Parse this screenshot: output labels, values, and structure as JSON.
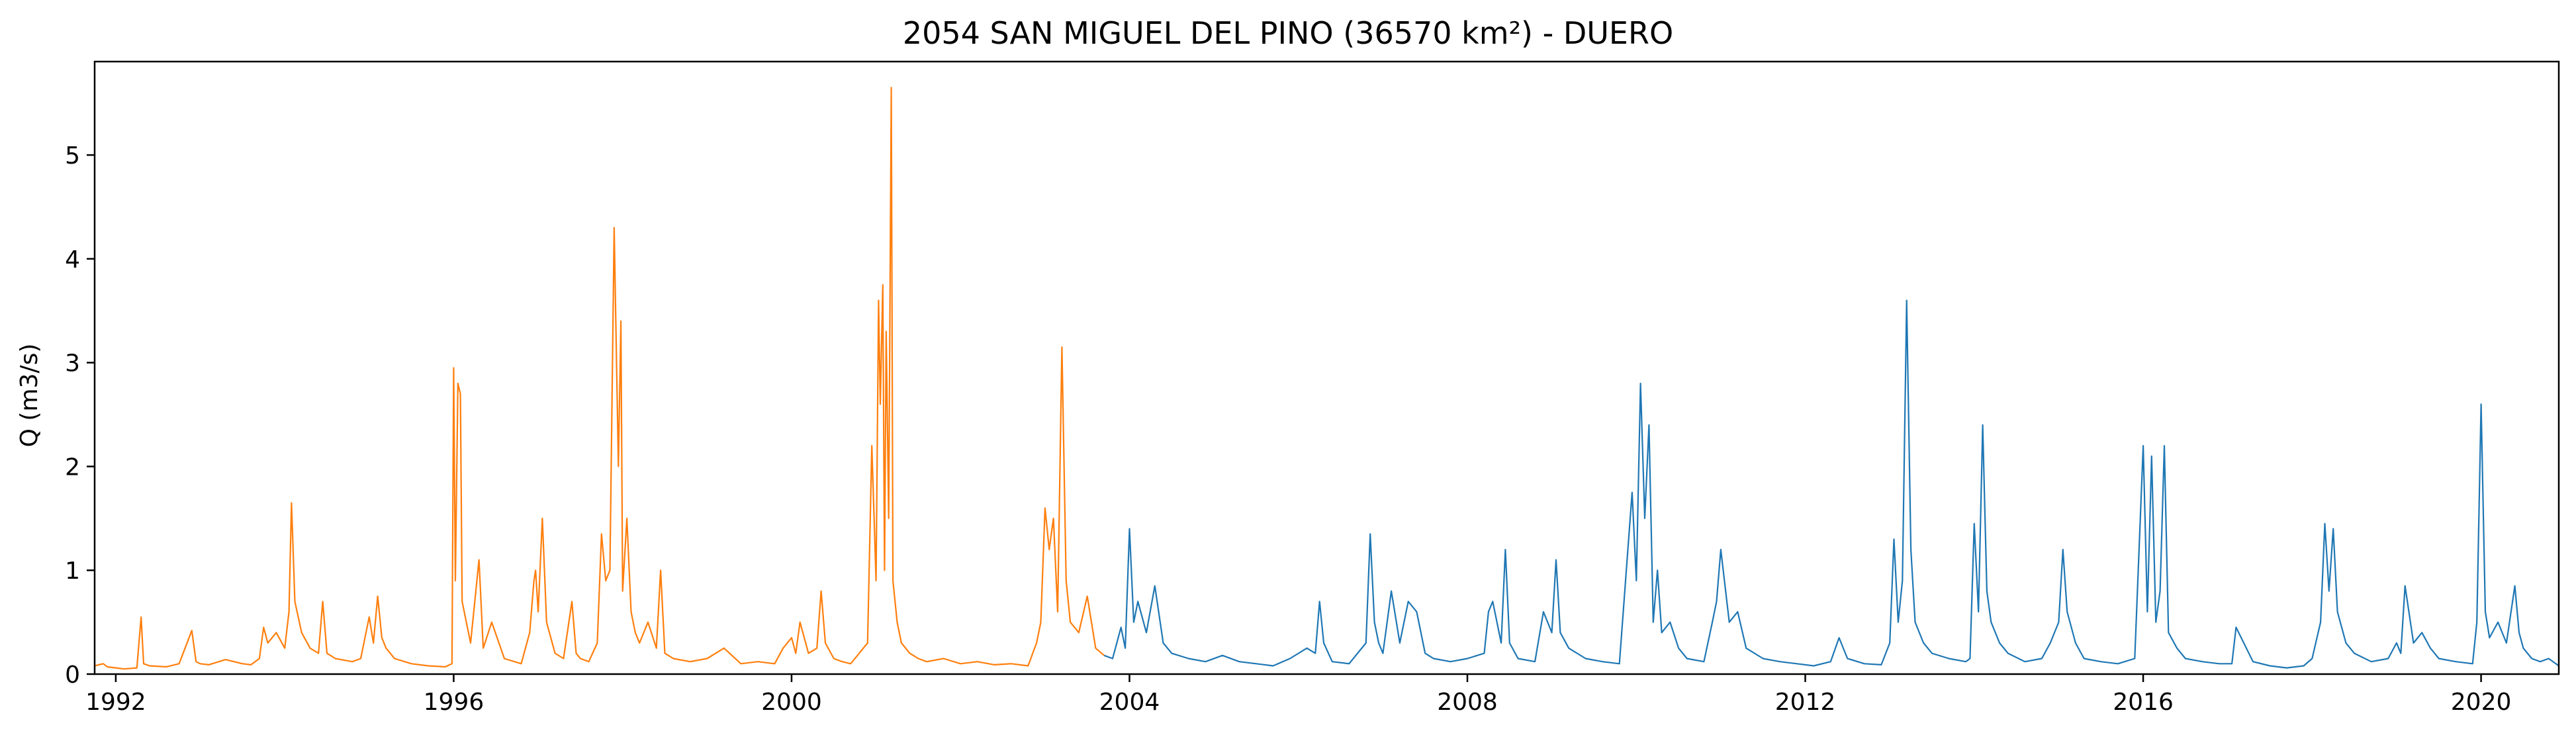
{
  "chart_data": {
    "type": "line",
    "title": "2054 SAN MIGUEL DEL PINO (36570 km²) - DUERO",
    "xlabel": "",
    "ylabel": "Q (m3/s)",
    "xlim": [
      1991.75,
      2020.92
    ],
    "ylim": [
      0,
      5.9
    ],
    "x_ticks": [
      1992,
      1996,
      2000,
      2004,
      2008,
      2012,
      2016,
      2020
    ],
    "x_tick_labels": [
      "1992",
      "1996",
      "2000",
      "2004",
      "2008",
      "2012",
      "2016",
      "2020"
    ],
    "y_ticks": [
      0,
      1,
      2,
      3,
      4,
      5
    ],
    "y_tick_labels": [
      "0",
      "1",
      "2",
      "3",
      "4",
      "5"
    ],
    "grid": false,
    "legend": "none",
    "series": [
      {
        "color": "#ff7f0e",
        "x": [
          1991.75,
          1991.85,
          1991.9,
          1992.0,
          1992.1,
          1992.25,
          1992.3,
          1992.33,
          1992.4,
          1992.6,
          1992.75,
          1992.9,
          1992.95,
          1993.0,
          1993.1,
          1993.3,
          1993.5,
          1993.6,
          1993.7,
          1993.75,
          1993.8,
          1993.9,
          1994.0,
          1994.05,
          1994.08,
          1994.12,
          1994.2,
          1994.3,
          1994.4,
          1994.45,
          1994.5,
          1994.6,
          1994.8,
          1994.9,
          1995.0,
          1995.05,
          1995.1,
          1995.15,
          1995.2,
          1995.3,
          1995.5,
          1995.7,
          1995.9,
          1995.98,
          1996.0,
          1996.02,
          1996.05,
          1996.08,
          1996.1,
          1996.15,
          1996.2,
          1996.3,
          1996.35,
          1996.45,
          1996.6,
          1996.8,
          1996.9,
          1996.95,
          1996.97,
          1997.0,
          1997.05,
          1997.1,
          1997.2,
          1997.3,
          1997.4,
          1997.45,
          1997.5,
          1997.6,
          1997.7,
          1997.75,
          1997.8,
          1997.85,
          1997.9,
          1997.95,
          1997.98,
          1998.0,
          1998.05,
          1998.1,
          1998.15,
          1998.2,
          1998.3,
          1998.4,
          1998.45,
          1998.5,
          1998.6,
          1998.8,
          1999.0,
          1999.2,
          1999.4,
          1999.6,
          1999.8,
          1999.9,
          2000.0,
          2000.05,
          2000.1,
          2000.2,
          2000.3,
          2000.35,
          2000.4,
          2000.5,
          2000.6,
          2000.7,
          2000.8,
          2000.9,
          2000.95,
          2001.0,
          2001.03,
          2001.05,
          2001.08,
          2001.1,
          2001.12,
          2001.15,
          2001.18,
          2001.2,
          2001.25,
          2001.3,
          2001.4,
          2001.5,
          2001.6,
          2001.8,
          2002.0,
          2002.2,
          2002.4,
          2002.6,
          2002.8,
          2002.9,
          2002.95,
          2003.0,
          2003.05,
          2003.1,
          2003.15,
          2003.2,
          2003.25,
          2003.3,
          2003.4,
          2003.5,
          2003.6,
          2003.7
        ],
        "values": [
          0.08,
          0.1,
          0.07,
          0.06,
          0.05,
          0.06,
          0.55,
          0.1,
          0.08,
          0.07,
          0.1,
          0.42,
          0.12,
          0.1,
          0.09,
          0.14,
          0.1,
          0.09,
          0.15,
          0.45,
          0.3,
          0.4,
          0.25,
          0.6,
          1.65,
          0.7,
          0.4,
          0.25,
          0.2,
          0.7,
          0.2,
          0.15,
          0.12,
          0.15,
          0.55,
          0.3,
          0.75,
          0.35,
          0.25,
          0.15,
          0.1,
          0.08,
          0.07,
          0.1,
          2.95,
          0.9,
          2.8,
          2.7,
          0.7,
          0.5,
          0.3,
          1.1,
          0.25,
          0.5,
          0.15,
          0.1,
          0.4,
          0.9,
          1.0,
          0.6,
          1.5,
          0.5,
          0.2,
          0.15,
          0.7,
          0.2,
          0.15,
          0.12,
          0.3,
          1.35,
          0.9,
          1.0,
          4.3,
          2.0,
          3.4,
          0.8,
          1.5,
          0.6,
          0.4,
          0.3,
          0.5,
          0.25,
          1.0,
          0.2,
          0.15,
          0.12,
          0.15,
          0.25,
          0.1,
          0.12,
          0.1,
          0.25,
          0.35,
          0.2,
          0.5,
          0.2,
          0.25,
          0.8,
          0.3,
          0.15,
          0.12,
          0.1,
          0.2,
          0.3,
          2.2,
          0.9,
          3.6,
          2.6,
          3.75,
          1.0,
          3.3,
          1.5,
          5.65,
          0.9,
          0.5,
          0.3,
          0.2,
          0.15,
          0.12,
          0.15,
          0.1,
          0.12,
          0.09,
          0.1,
          0.08,
          0.3,
          0.5,
          1.6,
          1.2,
          1.5,
          0.6,
          3.15,
          0.9,
          0.5,
          0.4,
          0.75,
          0.25,
          0.18
        ]
      },
      {
        "color": "#1f77b4",
        "x": [
          2003.7,
          2003.8,
          2003.9,
          2003.95,
          2004.0,
          2004.05,
          2004.1,
          2004.2,
          2004.3,
          2004.4,
          2004.5,
          2004.7,
          2004.9,
          2005.1,
          2005.3,
          2005.5,
          2005.7,
          2005.9,
          2006.1,
          2006.2,
          2006.25,
          2006.3,
          2006.4,
          2006.6,
          2006.8,
          2006.85,
          2006.9,
          2006.95,
          2007.0,
          2007.1,
          2007.2,
          2007.3,
          2007.4,
          2007.5,
          2007.6,
          2007.8,
          2008.0,
          2008.2,
          2008.25,
          2008.3,
          2008.4,
          2008.45,
          2008.5,
          2008.6,
          2008.8,
          2008.9,
          2009.0,
          2009.05,
          2009.1,
          2009.2,
          2009.4,
          2009.6,
          2009.8,
          2009.95,
          2010.0,
          2010.05,
          2010.1,
          2010.15,
          2010.2,
          2010.25,
          2010.3,
          2010.4,
          2010.5,
          2010.6,
          2010.8,
          2010.9,
          2010.95,
          2011.0,
          2011.1,
          2011.2,
          2011.3,
          2011.5,
          2011.7,
          2011.9,
          2012.1,
          2012.3,
          2012.4,
          2012.5,
          2012.7,
          2012.9,
          2013.0,
          2013.05,
          2013.1,
          2013.15,
          2013.2,
          2013.25,
          2013.3,
          2013.4,
          2013.5,
          2013.7,
          2013.9,
          2013.95,
          2014.0,
          2014.05,
          2014.1,
          2014.15,
          2014.2,
          2014.3,
          2014.4,
          2014.6,
          2014.8,
          2014.9,
          2015.0,
          2015.05,
          2015.1,
          2015.2,
          2015.3,
          2015.5,
          2015.7,
          2015.9,
          2016.0,
          2016.05,
          2016.1,
          2016.15,
          2016.2,
          2016.25,
          2016.3,
          2016.4,
          2016.5,
          2016.7,
          2016.9,
          2017.05,
          2017.1,
          2017.3,
          2017.5,
          2017.7,
          2017.9,
          2018.0,
          2018.1,
          2018.15,
          2018.2,
          2018.25,
          2018.3,
          2018.4,
          2018.5,
          2018.7,
          2018.9,
          2019.0,
          2019.05,
          2019.1,
          2019.2,
          2019.3,
          2019.4,
          2019.5,
          2019.7,
          2019.9,
          2019.95,
          2020.0,
          2020.05,
          2020.1,
          2020.2,
          2020.3,
          2020.4,
          2020.45,
          2020.5,
          2020.6,
          2020.7,
          2020.8,
          2020.92
        ],
        "values": [
          0.18,
          0.15,
          0.45,
          0.25,
          1.4,
          0.5,
          0.7,
          0.4,
          0.85,
          0.3,
          0.2,
          0.15,
          0.12,
          0.18,
          0.12,
          0.1,
          0.08,
          0.15,
          0.25,
          0.2,
          0.7,
          0.3,
          0.12,
          0.1,
          0.3,
          1.35,
          0.5,
          0.3,
          0.2,
          0.8,
          0.3,
          0.7,
          0.6,
          0.2,
          0.15,
          0.12,
          0.15,
          0.2,
          0.6,
          0.7,
          0.3,
          1.2,
          0.3,
          0.15,
          0.12,
          0.6,
          0.4,
          1.1,
          0.4,
          0.25,
          0.15,
          0.12,
          0.1,
          1.75,
          0.9,
          2.8,
          1.5,
          2.4,
          0.5,
          1.0,
          0.4,
          0.5,
          0.25,
          0.15,
          0.12,
          0.5,
          0.7,
          1.2,
          0.5,
          0.6,
          0.25,
          0.15,
          0.12,
          0.1,
          0.08,
          0.12,
          0.35,
          0.15,
          0.1,
          0.09,
          0.3,
          1.3,
          0.5,
          0.9,
          3.6,
          1.2,
          0.5,
          0.3,
          0.2,
          0.15,
          0.12,
          0.15,
          1.45,
          0.6,
          2.4,
          0.8,
          0.5,
          0.3,
          0.2,
          0.12,
          0.15,
          0.3,
          0.5,
          1.2,
          0.6,
          0.3,
          0.15,
          0.12,
          0.1,
          0.15,
          2.2,
          0.6,
          2.1,
          0.5,
          0.8,
          2.2,
          0.4,
          0.25,
          0.15,
          0.12,
          0.1,
          0.1,
          0.45,
          0.12,
          0.08,
          0.06,
          0.08,
          0.15,
          0.5,
          1.45,
          0.8,
          1.4,
          0.6,
          0.3,
          0.2,
          0.12,
          0.15,
          0.3,
          0.2,
          0.85,
          0.3,
          0.4,
          0.25,
          0.15,
          0.12,
          0.1,
          0.5,
          2.6,
          0.6,
          0.35,
          0.5,
          0.3,
          0.85,
          0.4,
          0.25,
          0.15,
          0.12,
          0.15,
          0.08
        ]
      }
    ]
  }
}
